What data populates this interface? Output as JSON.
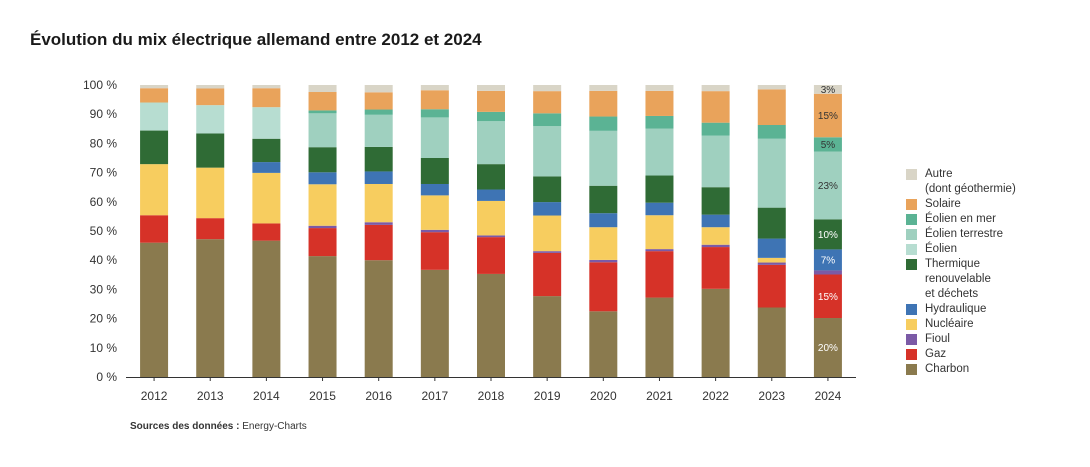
{
  "chart_data": {
    "type": "bar",
    "stacked": true,
    "title": "Évolution du mix électrique allemand entre 2012 et 2024",
    "source_label": "Sources des données :",
    "source_value": "Energy-Charts",
    "categories": [
      "2012",
      "2013",
      "2014",
      "2015",
      "2016",
      "2017",
      "2018",
      "2019",
      "2020",
      "2021",
      "2022",
      "2023",
      "2024"
    ],
    "y_ticks": [
      "0 %",
      "10 %",
      "20 %",
      "30 %",
      "40 %",
      "50 %",
      "60 %",
      "70 %",
      "80 %",
      "90 %",
      "100 %"
    ],
    "ylim": [
      0,
      100
    ],
    "legend_placement": "right",
    "series": [
      {
        "name": "Charbon",
        "color": "#8a7a4e",
        "values": [
          46,
          47.2,
          46.7,
          41.4,
          40,
          36.7,
          35.3,
          27.7,
          22.5,
          27.2,
          30.2,
          23.8,
          20.2
        ]
      },
      {
        "name": "Gaz",
        "color": "#d63228",
        "values": [
          9.4,
          7.2,
          5.9,
          9.6,
          12.1,
          12.9,
          12.6,
          14.8,
          16.8,
          15.9,
          14.3,
          14.6,
          14.9
        ]
      },
      {
        "name": "Fioul",
        "color": "#7b5aa6",
        "values": [
          0,
          0,
          0,
          0.8,
          0.9,
          0.8,
          0.6,
          0.6,
          0.8,
          0.7,
          0.8,
          0.8,
          1.4
        ]
      },
      {
        "name": "Nucléaire",
        "color": "#f7cd5f",
        "values": [
          17.5,
          17.3,
          17.3,
          14.2,
          13.1,
          11.8,
          11.8,
          12.2,
          11.2,
          11.6,
          6,
          1.6,
          0
        ]
      },
      {
        "name": "Hydraulique",
        "color": "#3e74b4",
        "values": [
          0,
          0,
          3.7,
          4.1,
          4.3,
          3.9,
          3.9,
          4.6,
          4.8,
          4.3,
          4.3,
          6.6,
          7.2
        ]
      },
      {
        "name": "Thermique\nrenouvelable\net déchets",
        "color": "#2f6b35",
        "values": [
          11.5,
          11.7,
          8,
          8.6,
          8.4,
          8.9,
          8.7,
          8.8,
          9.4,
          9.3,
          9.4,
          10.6,
          10.3
        ]
      },
      {
        "name": "Éolien",
        "color": "#b7ddd1",
        "values": [
          9.6,
          9.7,
          10.8,
          0,
          0,
          0,
          0,
          0,
          0,
          0,
          0,
          0,
          0
        ]
      },
      {
        "name": "Éolien terrestre",
        "color": "#9fd0bf",
        "values": [
          0,
          0,
          0,
          11.6,
          11,
          13.9,
          14.7,
          17.2,
          18.8,
          16.1,
          17.7,
          23.6,
          23.2
        ]
      },
      {
        "name": "Éolien en mer",
        "color": "#5bb394",
        "values": [
          0,
          0,
          0,
          1,
          1.8,
          2.8,
          3.2,
          4.4,
          4.9,
          4.3,
          4.4,
          4.7,
          4.9
        ]
      },
      {
        "name": "Solaire",
        "color": "#e9a35b",
        "values": [
          4.9,
          5.7,
          6.5,
          6.3,
          5.9,
          6.5,
          7.2,
          7.6,
          8.8,
          8.6,
          10.8,
          12.2,
          14.9
        ]
      },
      {
        "name": "Autre\n(dont géothermie)",
        "color": "#d9d5c7",
        "values": [
          1.1,
          1.2,
          1.1,
          2.4,
          2.5,
          1.8,
          2,
          2.1,
          2,
          2,
          2.1,
          1.5,
          3
        ]
      }
    ],
    "data_labels": [
      {
        "category": "2024",
        "series": "Charbon",
        "text": "20%"
      },
      {
        "category": "2024",
        "series": "Gaz",
        "text": "15%"
      },
      {
        "category": "2024",
        "series": "Hydraulique",
        "text": "7%"
      },
      {
        "category": "2024",
        "series": "Thermique\nrenouvelable\net déchets",
        "text": "10%"
      },
      {
        "category": "2024",
        "series": "Éolien terrestre",
        "text": "23%"
      },
      {
        "category": "2024",
        "series": "Éolien en mer",
        "text": "5%"
      },
      {
        "category": "2024",
        "series": "Solaire",
        "text": "15%"
      },
      {
        "category": "2024",
        "series": "Autre\n(dont géothermie)",
        "text": "3%"
      }
    ]
  }
}
